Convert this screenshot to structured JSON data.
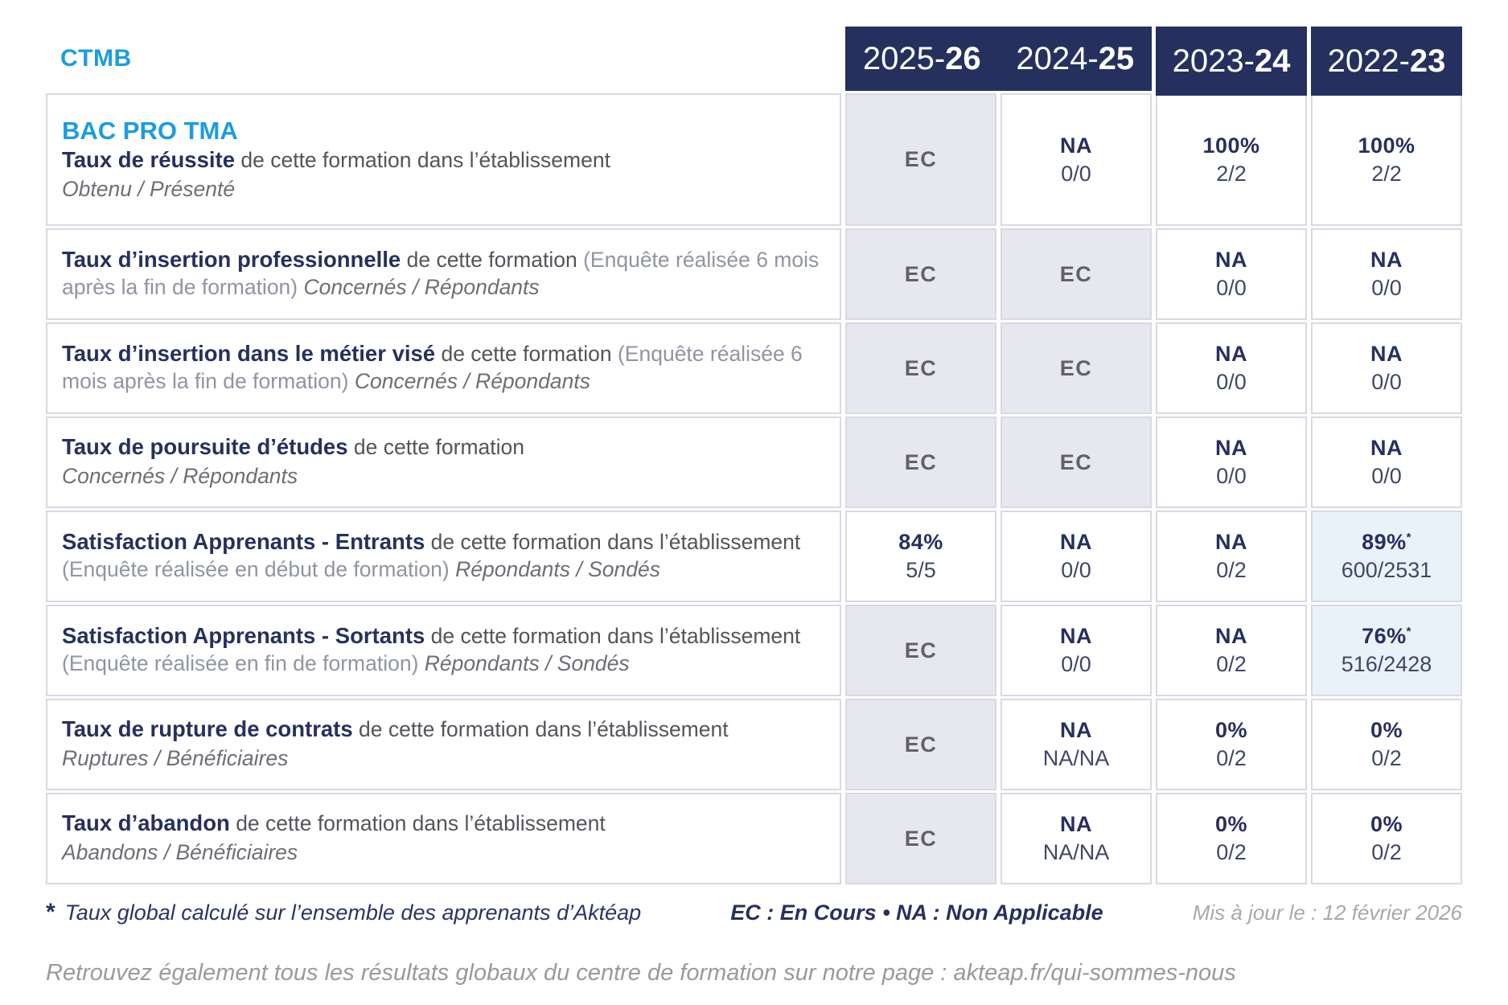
{
  "brand": "CTMB",
  "columns": [
    {
      "prefix": "2025-",
      "suffix": "26"
    },
    {
      "prefix": "2024-",
      "suffix": "25"
    },
    {
      "prefix": "2023-",
      "suffix": "24"
    },
    {
      "prefix": "2022-",
      "suffix": "23"
    }
  ],
  "program": "BAC PRO TMA",
  "rows": [
    {
      "title": "Taux de réussite",
      "desc": "de cette formation dans l’établissement",
      "paren": "",
      "sub": "Obtenu / Présenté",
      "cells": [
        {
          "main": "EC",
          "sub": ""
        },
        {
          "main": "NA",
          "sub": "0/0"
        },
        {
          "main": "100%",
          "sub": "2/2"
        },
        {
          "main": "100%",
          "sub": "2/2"
        }
      ]
    },
    {
      "title": "Taux d’insertion professionnelle",
      "desc": "de cette formation",
      "paren": "(Enquête réalisée 6 mois après la fin de formation)",
      "sub": "Concernés / Répondants",
      "cells": [
        {
          "main": "EC",
          "sub": ""
        },
        {
          "main": "EC",
          "sub": ""
        },
        {
          "main": "NA",
          "sub": "0/0"
        },
        {
          "main": "NA",
          "sub": "0/0"
        }
      ]
    },
    {
      "title": "Taux d’insertion dans le métier visé",
      "desc": "de cette formation",
      "paren": "(Enquête réalisée 6 mois après la fin de formation)",
      "sub": "Concernés / Répondants",
      "cells": [
        {
          "main": "EC",
          "sub": ""
        },
        {
          "main": "EC",
          "sub": ""
        },
        {
          "main": "NA",
          "sub": "0/0"
        },
        {
          "main": "NA",
          "sub": "0/0"
        }
      ]
    },
    {
      "title": "Taux de poursuite d’études",
      "desc": "de cette formation",
      "paren": "",
      "sub": "Concernés / Répondants",
      "cells": [
        {
          "main": "EC",
          "sub": ""
        },
        {
          "main": "EC",
          "sub": ""
        },
        {
          "main": "NA",
          "sub": "0/0"
        },
        {
          "main": "NA",
          "sub": "0/0"
        }
      ]
    },
    {
      "title": "Satisfaction Apprenants - Entrants",
      "desc": "de cette formation dans l’établissement",
      "paren": "(Enquête réalisée en début de formation)",
      "sub": "Répondants / Sondés",
      "cells": [
        {
          "main": "84%",
          "sub": "5/5"
        },
        {
          "main": "NA",
          "sub": "0/0"
        },
        {
          "main": "NA",
          "sub": "0/2"
        },
        {
          "main": "89%",
          "star": "*",
          "sub": "600/2531"
        }
      ]
    },
    {
      "title": "Satisfaction Apprenants - Sortants",
      "desc": "de cette formation dans l’établissement",
      "paren": "(Enquête réalisée en fin de formation)",
      "sub": "Répondants / Sondés",
      "cells": [
        {
          "main": "EC",
          "sub": ""
        },
        {
          "main": "NA",
          "sub": "0/0"
        },
        {
          "main": "NA",
          "sub": "0/2"
        },
        {
          "main": "76%",
          "star": "*",
          "sub": "516/2428"
        }
      ]
    },
    {
      "title": "Taux de rupture de contrats",
      "desc": "de cette formation dans l’établissement",
      "paren": "",
      "sub": "Ruptures / Bénéficiaires",
      "cells": [
        {
          "main": "EC",
          "sub": ""
        },
        {
          "main": "NA",
          "sub": "NA/NA"
        },
        {
          "main": "0%",
          "sub": "0/2"
        },
        {
          "main": "0%",
          "sub": "0/2"
        }
      ]
    },
    {
      "title": "Taux d’abandon",
      "desc": "de cette formation dans l’établissement",
      "paren": "",
      "sub": "Abandons / Bénéficiaires",
      "cells": [
        {
          "main": "EC",
          "sub": ""
        },
        {
          "main": "NA",
          "sub": "NA/NA"
        },
        {
          "main": "0%",
          "sub": "0/2"
        },
        {
          "main": "0%",
          "sub": "0/2"
        }
      ]
    }
  ],
  "footnote": {
    "star": "*",
    "text": "Taux global calculé sur l’ensemble des apprenants d’Aktéap",
    "legend": "EC : En Cours  •  NA : Non Applicable",
    "updated": "Mis à jour le : 12 février 2026"
  },
  "bottom_note": "Retrouvez également tous les résultats globaux du centre de formation sur notre page : akteap.fr/qui-sommes-nous"
}
